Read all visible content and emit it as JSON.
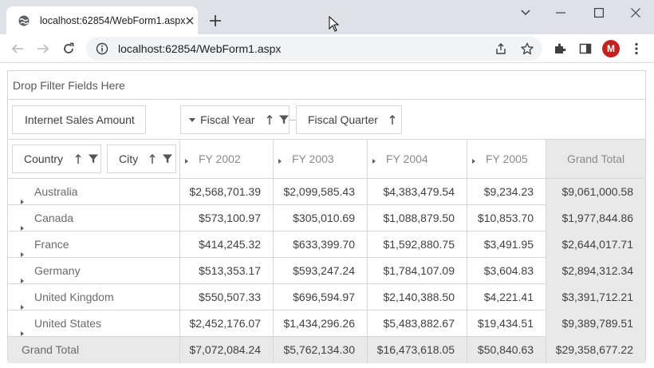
{
  "browser": {
    "tab_title": "localhost:62854/WebForm1.aspx",
    "url": "localhost:62854/WebForm1.aspx",
    "profile_initial": "M",
    "profile_color": "#c5221f"
  },
  "pivot": {
    "filter_area_text": "Drop Filter Fields Here",
    "data_field": "Internet Sales Amount",
    "column_fields": [
      "Fiscal Year",
      "Fiscal Quarter"
    ],
    "row_fields": [
      "Country",
      "City"
    ],
    "column_headers": [
      "FY 2002",
      "FY 2003",
      "FY 2004",
      "FY 2005"
    ],
    "grand_total_label": "Grand Total",
    "rows": [
      {
        "label": "Australia",
        "values": [
          "$2,568,701.39",
          "$2,099,585.43",
          "$4,383,479.54",
          "$9,234.23"
        ],
        "total": "$9,061,000.58"
      },
      {
        "label": "Canada",
        "values": [
          "$573,100.97",
          "$305,010.69",
          "$1,088,879.50",
          "$10,853.70"
        ],
        "total": "$1,977,844.86"
      },
      {
        "label": "France",
        "values": [
          "$414,245.32",
          "$633,399.70",
          "$1,592,880.75",
          "$3,491.95"
        ],
        "total": "$2,644,017.71"
      },
      {
        "label": "Germany",
        "values": [
          "$513,353.17",
          "$593,247.24",
          "$1,784,107.09",
          "$3,604.83"
        ],
        "total": "$2,894,312.34"
      },
      {
        "label": "United Kingdom",
        "values": [
          "$550,507.33",
          "$696,594.97",
          "$2,140,388.50",
          "$4,221.41"
        ],
        "total": "$3,391,712.21"
      },
      {
        "label": "United States",
        "values": [
          "$2,452,176.07",
          "$1,434,296.26",
          "$5,483,882.67",
          "$19,434.51"
        ],
        "total": "$9,389,789.51"
      }
    ],
    "grand_total_row": {
      "label": "Grand Total",
      "values": [
        "$7,072,084.24",
        "$5,762,134.30",
        "$16,473,618.05",
        "$50,840.63"
      ],
      "total": "$29,358,677.22"
    },
    "colors": {
      "border": "#d7d7d7",
      "grand_total_bg": "#e9e9e9"
    }
  }
}
